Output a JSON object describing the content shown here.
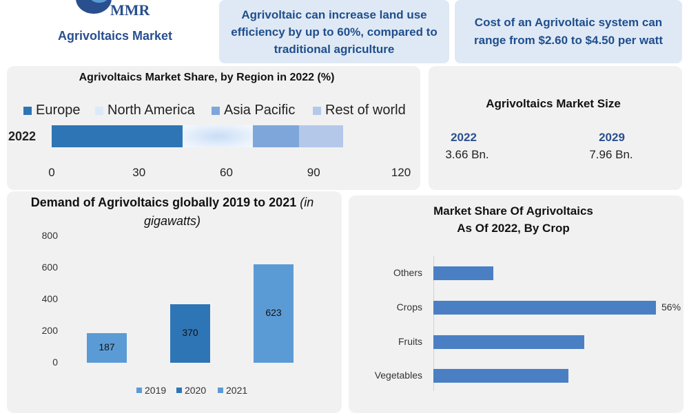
{
  "header": {
    "logo_text": "MMR",
    "title": "Agrivoltaics Market",
    "fact1": "Agrivoltaic can increase land use efficiency by up to 60%, compared to traditional agriculture",
    "fact2": "Cost of an Agrivoltaic system can range from $2.60 to $4.50 per watt"
  },
  "colors": {
    "panel": "#f1f1f1",
    "europe": "#2e75b6",
    "north_america": "#dce9f8",
    "asia_pacific": "#7ea6da",
    "rest_of_world": "#b4c8ea",
    "bar2019": "#5b9bd5",
    "bar2020": "#2e75b6",
    "bar2021": "#5b9bd5",
    "crop_bar": "#4a7fc4",
    "heading": "#2a4f8f"
  },
  "market_size": {
    "title": "Agrivoltaics Market Size",
    "items": [
      {
        "year": "2022",
        "value": "3.66 Bn."
      },
      {
        "year": "2029",
        "value": "7.96 Bn."
      }
    ]
  },
  "chart_data": [
    {
      "type": "bar",
      "orientation": "horizontal-stacked",
      "title": "Agrivoltaics Market Share, by Region in 2022 (%)",
      "categories": [
        "2022"
      ],
      "series": [
        {
          "name": "Europe",
          "values": [
            45
          ]
        },
        {
          "name": "North America",
          "values": [
            24
          ]
        },
        {
          "name": "Asia Pacific",
          "values": [
            16
          ]
        },
        {
          "name": "Rest of world",
          "values": [
            15
          ]
        }
      ],
      "xlim": [
        0,
        120
      ],
      "xticks": [
        "0",
        "30",
        "60",
        "90",
        "120"
      ],
      "legend": "top"
    },
    {
      "type": "bar",
      "title": "Demand of Agrivoltaics globally 2019 to 2021",
      "title_suffix": "(in gigawatts)",
      "categories": [
        "2019",
        "2020",
        "2021"
      ],
      "values": [
        187,
        370,
        623
      ],
      "value_labels": [
        "187",
        "370",
        "623"
      ],
      "ylim": [
        0,
        800
      ],
      "yticks": [
        "0",
        "200",
        "400",
        "600",
        "800"
      ],
      "legend": "bottom"
    },
    {
      "type": "bar",
      "orientation": "horizontal",
      "title_line1": "Market Share Of Agrivoltaics",
      "title_line2": "As Of 2022, By Crop",
      "categories": [
        "Others",
        "Crops",
        "Fruits",
        "Vegetables"
      ],
      "values": [
        15,
        56,
        38,
        34
      ],
      "data_labels": [
        "",
        "56%",
        "",
        ""
      ],
      "xlim": [
        0,
        56
      ]
    }
  ]
}
